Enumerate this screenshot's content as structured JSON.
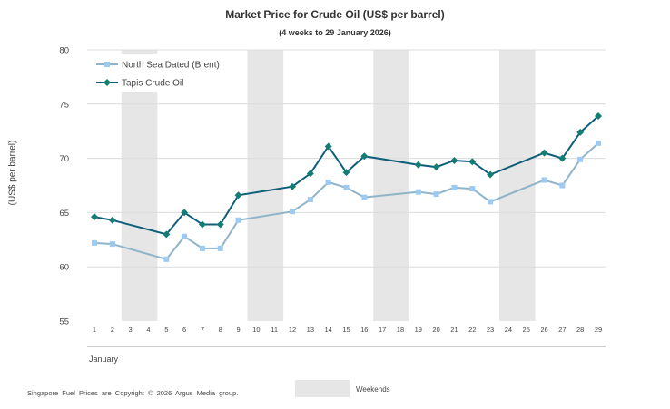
{
  "chart_data": {
    "type": "line",
    "title": "Market Price for Crude Oil (US$ per barrel)",
    "subtitle": "(4 weeks to 29 January 2026)",
    "xlabel": "January",
    "ylabel": "(US$ per barrel)",
    "ylim": [
      55,
      80
    ],
    "yticks": [
      55,
      60,
      65,
      70,
      75,
      80
    ],
    "xticks": [
      1,
      2,
      3,
      4,
      5,
      6,
      7,
      8,
      9,
      10,
      11,
      12,
      13,
      14,
      15,
      16,
      17,
      18,
      19,
      20,
      21,
      22,
      23,
      24,
      25,
      26,
      27,
      28,
      29
    ],
    "weekends": [
      [
        3,
        4
      ],
      [
        10,
        11
      ],
      [
        17,
        18
      ],
      [
        24,
        25
      ]
    ],
    "grid": true,
    "legend_position": "top-left",
    "series": [
      {
        "name": "North Sea Dated (Brent)",
        "color": "#8fb4c8",
        "marker_color": "#9ccaf2",
        "marker": "square",
        "x": [
          1,
          2,
          5,
          6,
          7,
          8,
          9,
          12,
          13,
          14,
          15,
          16,
          19,
          20,
          21,
          22,
          23,
          26,
          27,
          28,
          29
        ],
        "values": [
          62.2,
          62.1,
          60.7,
          62.8,
          61.7,
          61.7,
          64.3,
          65.1,
          66.2,
          67.8,
          67.3,
          66.4,
          66.9,
          66.7,
          67.3,
          67.2,
          66.0,
          68.0,
          67.5,
          69.9,
          71.4
        ]
      },
      {
        "name": "Tapis Crude Oil",
        "color": "#0f5f7a",
        "marker_color": "#137d74",
        "marker": "diamond",
        "x": [
          1,
          2,
          5,
          6,
          7,
          8,
          9,
          12,
          13,
          14,
          15,
          16,
          19,
          20,
          21,
          22,
          23,
          26,
          27,
          28,
          29
        ],
        "values": [
          64.6,
          64.3,
          63.0,
          65.0,
          63.9,
          63.9,
          66.6,
          67.4,
          68.6,
          71.1,
          68.7,
          70.2,
          69.4,
          69.2,
          69.8,
          69.7,
          68.5,
          70.5,
          70.0,
          72.4,
          73.9
        ]
      }
    ]
  },
  "footer": {
    "copyright": "Singapore Fuel Prices are Copyright © 2026 Argus Media group.",
    "weekends_label": "Weekends"
  }
}
